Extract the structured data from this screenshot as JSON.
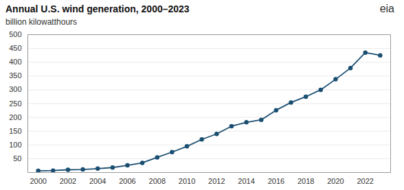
{
  "chart_data": {
    "type": "line",
    "title": "Annual U.S. wind generation, 2000–2023",
    "subtitle": "billion kilowatthours",
    "annotations": [
      "eia"
    ],
    "x": [
      2000,
      2001,
      2002,
      2003,
      2004,
      2005,
      2006,
      2007,
      2008,
      2009,
      2010,
      2011,
      2012,
      2013,
      2014,
      2015,
      2016,
      2017,
      2018,
      2019,
      2020,
      2021,
      2022,
      2023
    ],
    "values": [
      6,
      7,
      10,
      11,
      14,
      18,
      26,
      35,
      55,
      74,
      95,
      120,
      140,
      168,
      182,
      191,
      226,
      254,
      275,
      300,
      338,
      379,
      435,
      425
    ],
    "color": "#1b4f72",
    "marker": "circle",
    "xlim": [
      1999.3,
      2023.7
    ],
    "xticks": [
      2000,
      2002,
      2004,
      2006,
      2008,
      2010,
      2012,
      2014,
      2016,
      2018,
      2020,
      2022
    ],
    "ylim": [
      0,
      500
    ],
    "yticks": [
      50,
      100,
      150,
      200,
      250,
      300,
      350,
      400,
      450,
      500
    ],
    "grid": true
  }
}
